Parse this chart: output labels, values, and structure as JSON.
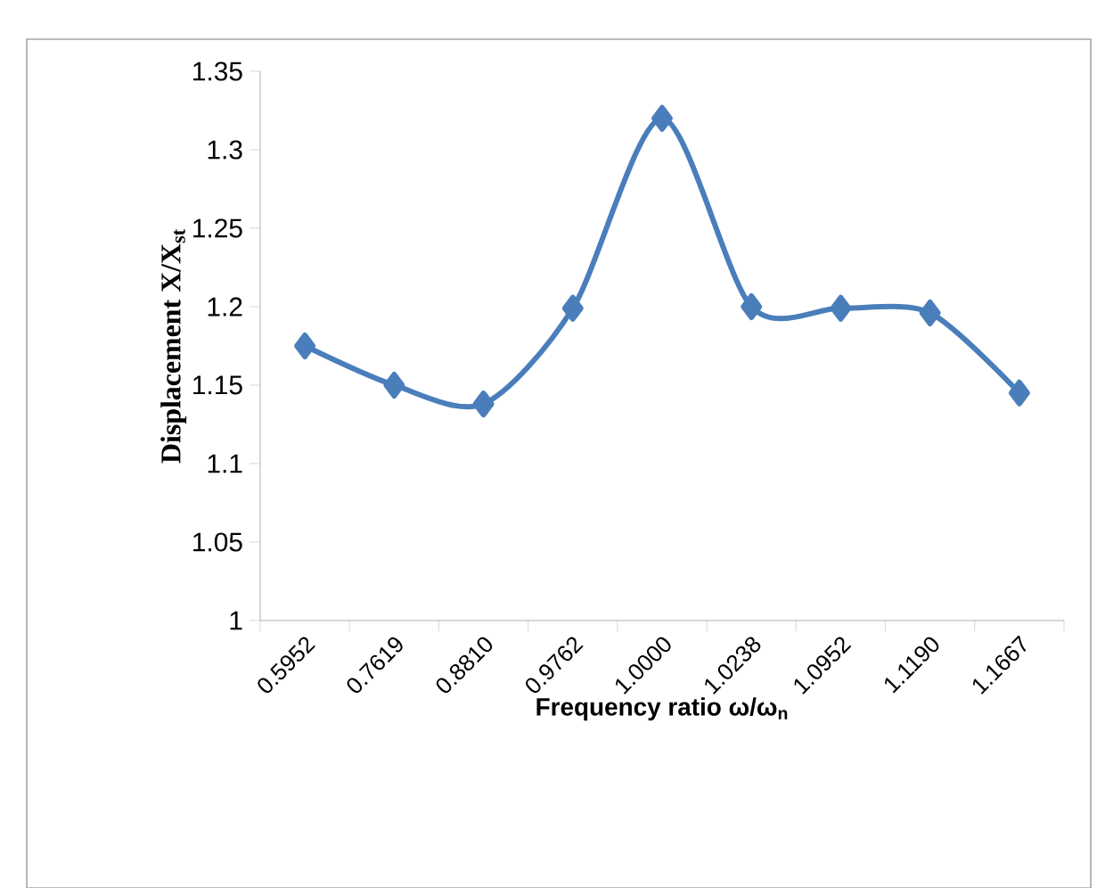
{
  "chart_data": {
    "type": "line",
    "xlabel": "Frequency ratio ω/ω$_{n}$",
    "ylabel": "Displacement  X/X$_{st}$",
    "categories": [
      "0.5952",
      "0.7619",
      "0.8810",
      "0.9762",
      "1.0000",
      "1.0238",
      "1.0952",
      "1.1190",
      "1.1667"
    ],
    "values": [
      1.175,
      1.15,
      1.138,
      1.199,
      1.32,
      1.2,
      1.199,
      1.196,
      1.145
    ],
    "color": "#4a7ebb",
    "marker": "diamond",
    "line_style": "solid",
    "ylim": [
      1,
      1.35
    ],
    "yticks": [
      1,
      1.05,
      1.1,
      1.15,
      1.2,
      1.25,
      1.3,
      1.35
    ]
  }
}
